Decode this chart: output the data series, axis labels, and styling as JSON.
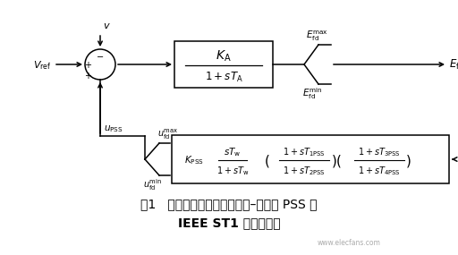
{
  "bg_color": "#ffffff",
  "fig_width": 5.12,
  "fig_height": 2.85,
  "title_line1": "图1   带有传统结构固定的超前–滞后型 PSS 的",
  "title_line2": "IEEE ST1 型励磁系统",
  "watermark": "www.elecfans.com"
}
